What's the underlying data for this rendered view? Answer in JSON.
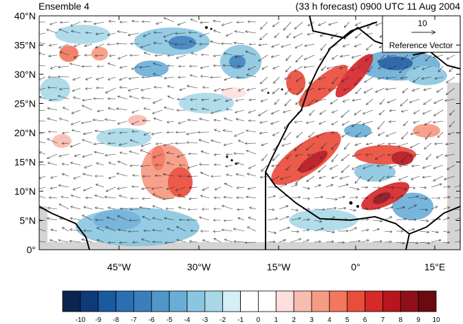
{
  "title_left": "Ensemble 4",
  "title_right": "(33 h forecast) 0900 UTC 11 Aug 2004",
  "reference_vector": {
    "magnitude_label": "10",
    "caption": "Reference Vector"
  },
  "lat_ticks": [
    "40°N",
    "35°N",
    "30°N",
    "25°N",
    "20°N",
    "15°N",
    "10°N",
    "5°N",
    "0°"
  ],
  "lon_ticks": [
    "45°W",
    "30°W",
    "15°W",
    "0°",
    "15°E"
  ],
  "colorbar": {
    "labels": [
      "-10",
      "-9",
      "-8",
      "-7",
      "-6",
      "-5",
      "-4",
      "-3",
      "-2",
      "-1",
      "0",
      "1",
      "2",
      "3",
      "4",
      "5",
      "6",
      "7",
      "8",
      "9",
      "10"
    ],
    "colors": [
      "#0b2550",
      "#0e3a78",
      "#1a5aa0",
      "#2a6fb2",
      "#3a7fbd",
      "#5097c9",
      "#6aaed6",
      "#8ac6e0",
      "#a8d8e8",
      "#d6eef6",
      "#ffffff",
      "#ffffff",
      "#fde0dd",
      "#f9bcb0",
      "#f79a84",
      "#f3765e",
      "#ea4d3c",
      "#d7282a",
      "#b8161f",
      "#911018",
      "#6a0b10"
    ]
  },
  "map_colors": {
    "land_gray": "#d4d4d4",
    "coast": "#000000"
  }
}
